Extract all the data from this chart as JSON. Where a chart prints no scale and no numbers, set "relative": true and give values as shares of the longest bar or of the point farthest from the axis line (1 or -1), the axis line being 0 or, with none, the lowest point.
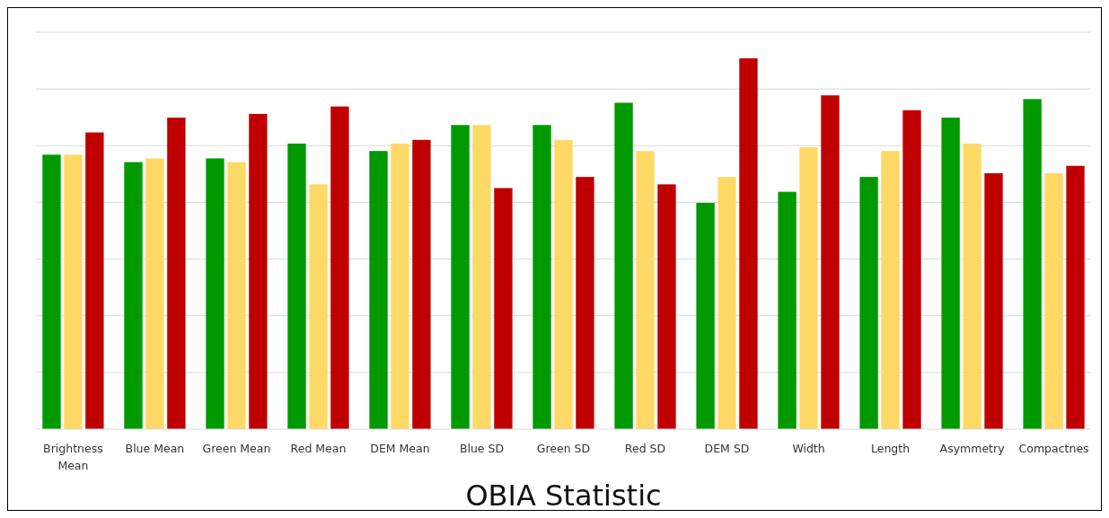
{
  "chart_data": {
    "type": "bar",
    "xlabel": "OBIA Statistic",
    "relative": true,
    "grid": "y",
    "categories": [
      "Brightness Mean",
      "Blue Mean",
      "Green Mean",
      "Red Mean",
      "DEM Mean",
      "Blue SD",
      "Green SD",
      "Red SD",
      "DEM SD",
      "Width",
      "Length",
      "Asymmetry",
      "Compactnes"
    ],
    "series": [
      {
        "color": "#009900",
        "values": [
          0.74,
          0.72,
          0.73,
          0.77,
          0.75,
          0.82,
          0.82,
          0.88,
          0.61,
          0.64,
          0.68,
          0.84,
          0.89
        ]
      },
      {
        "color": "#ffd966",
        "values": [
          0.74,
          0.73,
          0.72,
          0.66,
          0.77,
          0.82,
          0.78,
          0.75,
          0.68,
          0.76,
          0.75,
          0.77,
          0.69
        ]
      },
      {
        "color": "#c00000",
        "values": [
          0.8,
          0.84,
          0.85,
          0.87,
          0.78,
          0.65,
          0.68,
          0.66,
          1,
          0.9,
          0.86,
          0.69,
          0.71
        ]
      }
    ]
  }
}
